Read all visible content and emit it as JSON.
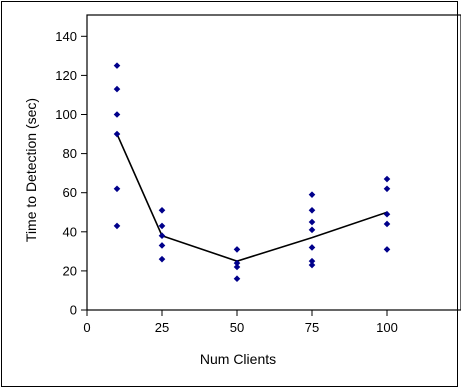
{
  "chart_data": {
    "type": "scatter",
    "xlabel": "Num Clients",
    "ylabel": "Time to Detection (sec)",
    "xlim": [
      0,
      125
    ],
    "ylim": [
      0,
      150
    ],
    "x_ticks": [
      0,
      25,
      50,
      75,
      100
    ],
    "y_ticks": [
      0,
      20,
      40,
      60,
      80,
      100,
      120,
      140
    ],
    "grid": false,
    "colors": {
      "points": "#00008b",
      "line": "#000000"
    },
    "series": [
      {
        "type": "scatter",
        "points": [
          [
            10,
            125
          ],
          [
            10,
            113
          ],
          [
            10,
            100
          ],
          [
            10,
            90
          ],
          [
            10,
            62
          ],
          [
            10,
            43
          ],
          [
            25,
            51
          ],
          [
            25,
            43
          ],
          [
            25,
            38
          ],
          [
            25,
            33
          ],
          [
            25,
            26
          ],
          [
            50,
            31
          ],
          [
            50,
            24
          ],
          [
            50,
            22
          ],
          [
            50,
            16
          ],
          [
            75,
            59
          ],
          [
            75,
            51
          ],
          [
            75,
            45
          ],
          [
            75,
            41
          ],
          [
            75,
            32
          ],
          [
            75,
            25
          ],
          [
            75,
            23
          ],
          [
            100,
            67
          ],
          [
            100,
            62
          ],
          [
            100,
            49
          ],
          [
            100,
            44
          ],
          [
            100,
            31
          ]
        ]
      },
      {
        "type": "line",
        "points": [
          [
            10,
            90
          ],
          [
            25,
            38
          ],
          [
            50,
            25
          ],
          [
            75,
            37
          ],
          [
            100,
            50
          ]
        ]
      }
    ]
  }
}
